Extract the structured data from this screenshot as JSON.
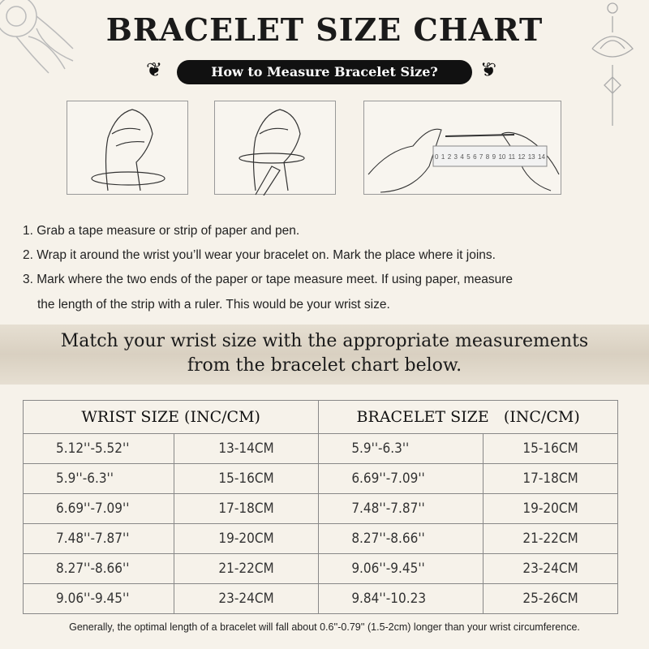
{
  "title": "BRACELET SIZE CHART",
  "subtitle": "How to Measure Bracelet Size?",
  "ruler_numbers": [
    "0",
    "1",
    "2",
    "3",
    "4",
    "5",
    "6",
    "7",
    "8",
    "9",
    "10",
    "11",
    "12",
    "13",
    "14"
  ],
  "steps": [
    "1. Grab a tape measure or strip of paper and pen.",
    "2. Wrap it around the wrist you’ll wear your bracelet on. Mark the place where it joins.",
    "3. Mark where the two ends of the paper or tape measure meet. If using paper, measure",
    "the length of the strip with a ruler. This would be your wrist size."
  ],
  "band": [
    "Match your wrist size with the appropriate measurements",
    "from the bracelet chart below."
  ],
  "table": {
    "headers": [
      "WRIST SIZE (INC/CM)",
      "BRACELET SIZE   (INC/CM)"
    ],
    "rows": [
      [
        "5.12''-5.52''",
        "13-14CM",
        "5.9''-6.3''",
        "15-16CM"
      ],
      [
        "5.9''-6.3''",
        "15-16CM",
        "6.69''-7.09''",
        "17-18CM"
      ],
      [
        "6.69''-7.09''",
        "17-18CM",
        "7.48''-7.87''",
        "19-20CM"
      ],
      [
        "7.48''-7.87''",
        "19-20CM",
        "8.27''-8.66''",
        "21-22CM"
      ],
      [
        "8.27''-8.66''",
        "21-22CM",
        "9.06''-9.45''",
        "23-24CM"
      ],
      [
        "9.06''-9.45''",
        "23-24CM",
        "9.84''-10.23",
        "25-26CM"
      ]
    ]
  },
  "footnote": "Generally, the optimal length of a bracelet will fall about 0.6''-0.79'' (1.5-2cm) longer than your wrist circumference."
}
